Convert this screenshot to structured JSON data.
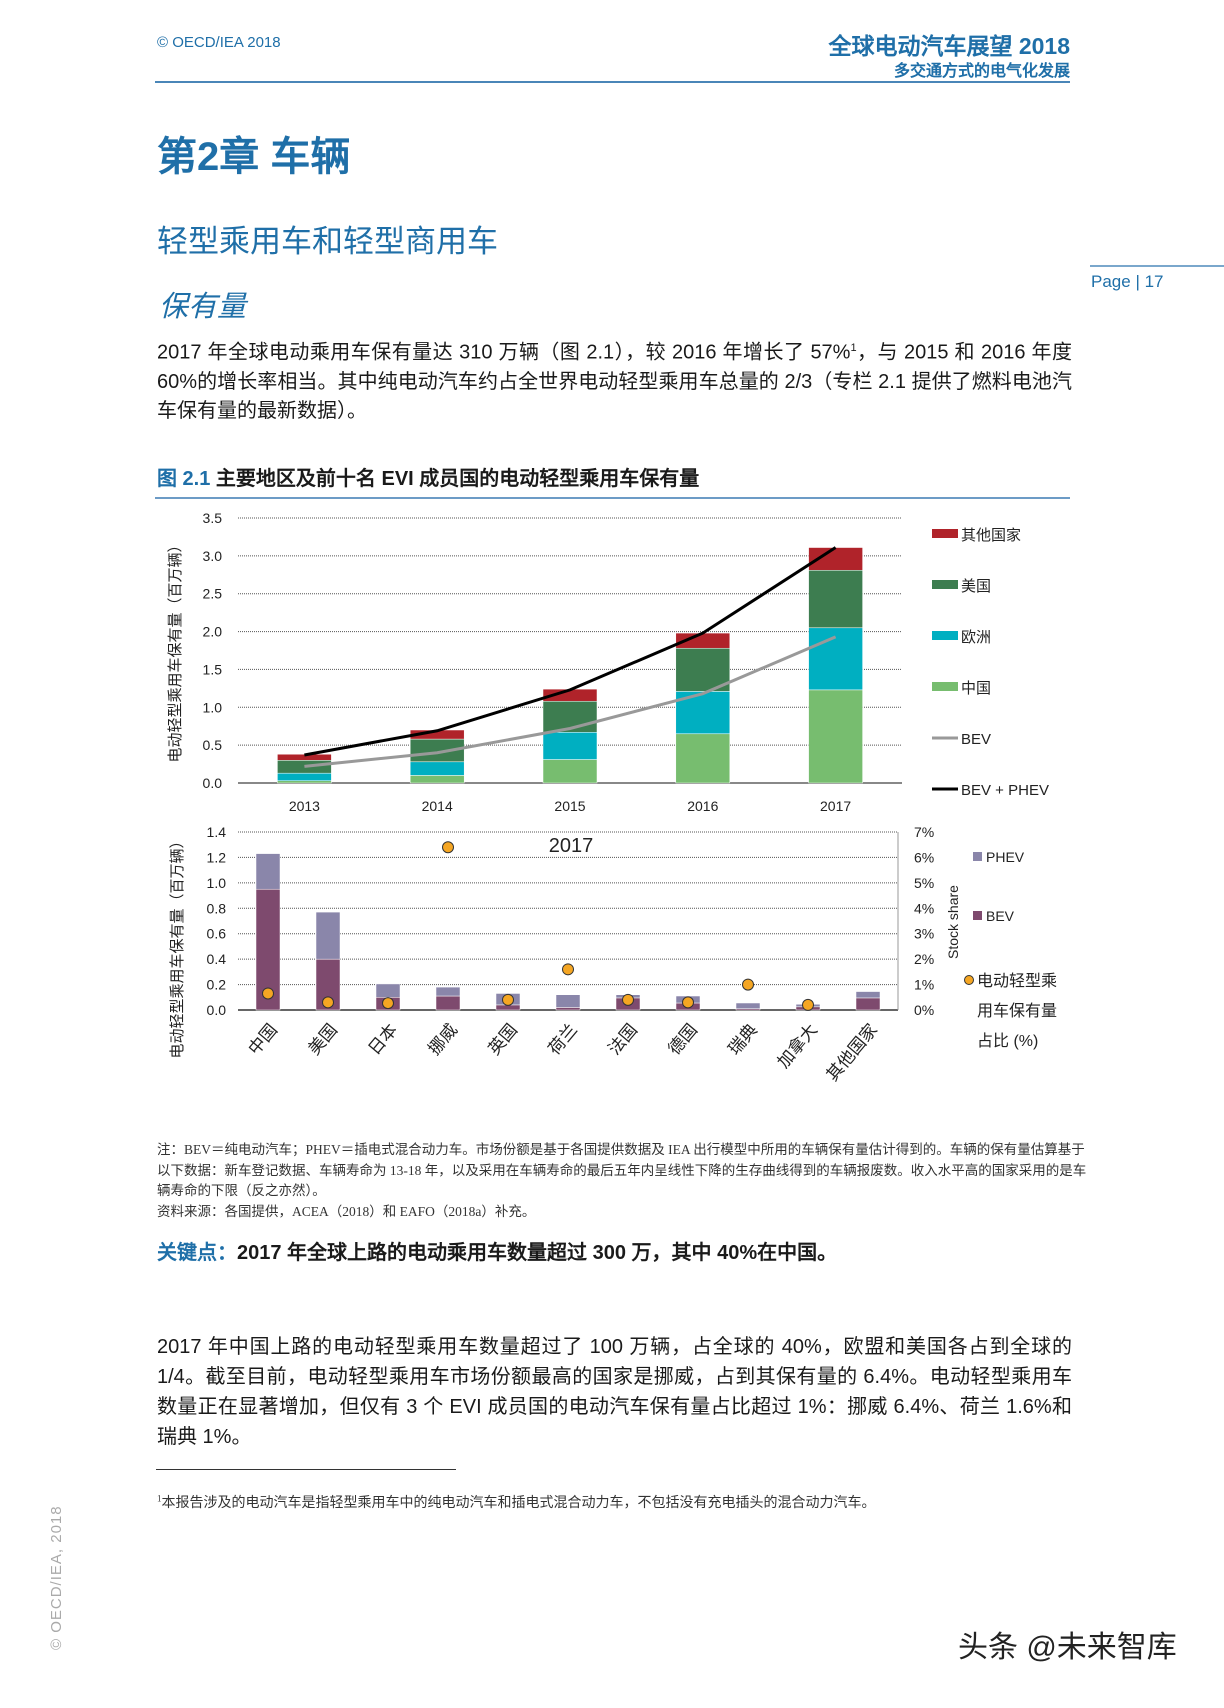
{
  "header": {
    "copyright": "© OECD/IEA 2018",
    "report_title": "全球电动汽车展望 2018",
    "report_subtitle": "多交通方式的电气化发展"
  },
  "page": {
    "label": "Page",
    "separator": "|",
    "number": "17"
  },
  "chapter_title": "第2章 车辆",
  "section_title": "轻型乘用车和轻型商用车",
  "subsection_title": "保有量",
  "intro_paragraph": {
    "before_sup": "2017 年全球电动乘用车保有量达 310 万辆（图 2.1），较 2016 年增长了 57%",
    "sup": "1",
    "after_sup": "，与 2015 和 2016 年度 60%的增长率相当。其中纯电动汽车约占全世界电动轻型乘用车总量的 2/3（专栏 2.1 提供了燃料电池汽车保有量的最新数据）。"
  },
  "figure": {
    "number": "图 2.1",
    "title": "主要地区及前十名 EVI 成员国的电动轻型乘用车保有量"
  },
  "chart_data": [
    {
      "type": "bar",
      "stacked": true,
      "ylabel": "电动轻型乘用车保有量（百万辆）",
      "ylim": [
        0,
        3.5
      ],
      "yticks": [
        "0.0",
        "0.5",
        "1.0",
        "1.5",
        "2.0",
        "2.5",
        "3.0",
        "3.5"
      ],
      "grid": true,
      "legend_position": "right",
      "categories": [
        "2013",
        "2014",
        "2015",
        "2016",
        "2017"
      ],
      "series": [
        {
          "name": "中国",
          "color": "#77bd6f",
          "values": [
            0.03,
            0.1,
            0.31,
            0.65,
            1.23
          ]
        },
        {
          "name": "欧洲",
          "color": "#00afc1",
          "values": [
            0.1,
            0.18,
            0.36,
            0.56,
            0.82
          ]
        },
        {
          "name": "美国",
          "color": "#3d7d50",
          "values": [
            0.17,
            0.3,
            0.41,
            0.57,
            0.76
          ]
        },
        {
          "name": "其他国家",
          "color": "#b0232a",
          "values": [
            0.08,
            0.12,
            0.16,
            0.2,
            0.3
          ]
        }
      ],
      "lines": [
        {
          "name": "BEV",
          "color": "#999999",
          "values": [
            0.22,
            0.4,
            0.72,
            1.18,
            1.93
          ]
        },
        {
          "name": "BEV + PHEV",
          "color": "#000000",
          "values": [
            0.37,
            0.69,
            1.23,
            1.98,
            3.11
          ]
        }
      ]
    },
    {
      "type": "bar",
      "stacked": true,
      "annotation": "2017",
      "ylabel": "电动轻型乘用车保有量（百万辆）",
      "ylim": [
        0,
        1.4
      ],
      "yticks": [
        "0.0",
        "0.2",
        "0.4",
        "0.6",
        "0.8",
        "1.0",
        "1.2",
        "1.4"
      ],
      "y2label": "Stock share",
      "y2lim": [
        0,
        7
      ],
      "y2ticks": [
        "0%",
        "1%",
        "2%",
        "3%",
        "4%",
        "5%",
        "6%",
        "7%"
      ],
      "grid": true,
      "legend_position": "right",
      "categories": [
        "中国",
        "美国",
        "日本",
        "挪威",
        "英国",
        "荷兰",
        "法国",
        "德国",
        "瑞典",
        "加拿大",
        "其他国家"
      ],
      "series": [
        {
          "name": "BEV",
          "color": "#7e4a6e",
          "values": [
            0.95,
            0.4,
            0.1,
            0.11,
            0.04,
            0.02,
            0.095,
            0.055,
            0.01,
            0.025,
            0.095
          ]
        },
        {
          "name": "PHEV",
          "color": "#8a86aa",
          "values": [
            0.28,
            0.37,
            0.105,
            0.07,
            0.09,
            0.1,
            0.025,
            0.055,
            0.045,
            0.02,
            0.05
          ]
        }
      ],
      "scatter": {
        "name_line1": "电动轻型乘",
        "name_line2": "用车保有量",
        "name_line3": "占比 (%)",
        "color": "#f5a623",
        "values_percent": [
          0.65,
          0.3,
          0.27,
          6.4,
          0.4,
          1.6,
          0.4,
          0.3,
          1.0,
          0.2,
          null
        ]
      }
    }
  ],
  "notes": {
    "line1": "注：BEV＝纯电动汽车；PHEV＝插电式混合动力车。市场份额是基于各国提供数据及 IEA 出行模型中所用的车辆保有量估计得到的。车辆的保有量估算基于以下数据：新车登记数据、车辆寿命为 13-18 年，以及采用在车辆寿命的最后五年内呈线性下降的生存曲线得到的车辆报废数。收入水平高的国家采用的是车辆寿命的下限（反之亦然）。",
    "source": "资料来源：各国提供，ACEA（2018）和 EAFO（2018a）补充。"
  },
  "key_point": {
    "label": "关键点：",
    "text": "2017 年全球上路的电动乘用车数量超过 300 万，其中 40%在中国。"
  },
  "body_paragraph": "2017 年中国上路的电动轻型乘用车数量超过了 100 万辆，占全球的 40%，欧盟和美国各占到全球的 1/4。截至目前，电动轻型乘用车市场份额最高的国家是挪威，占到其保有量的 6.4%。电动轻型乘用车数量正在显著增加，但仅有 3 个 EVI 成员国的电动汽车保有量占比超过 1%：挪威 6.4%、荷兰 1.6%和瑞典 1%。",
  "footnote": {
    "marker": "1",
    "text": "本报告涉及的电动汽车是指轻型乘用车中的纯电动汽车和插电式混合动力车，不包括没有充电插头的混合动力汽车。"
  },
  "side_copyright": "© OECD/IEA, 2018",
  "watermark": "头条 @未来智库"
}
